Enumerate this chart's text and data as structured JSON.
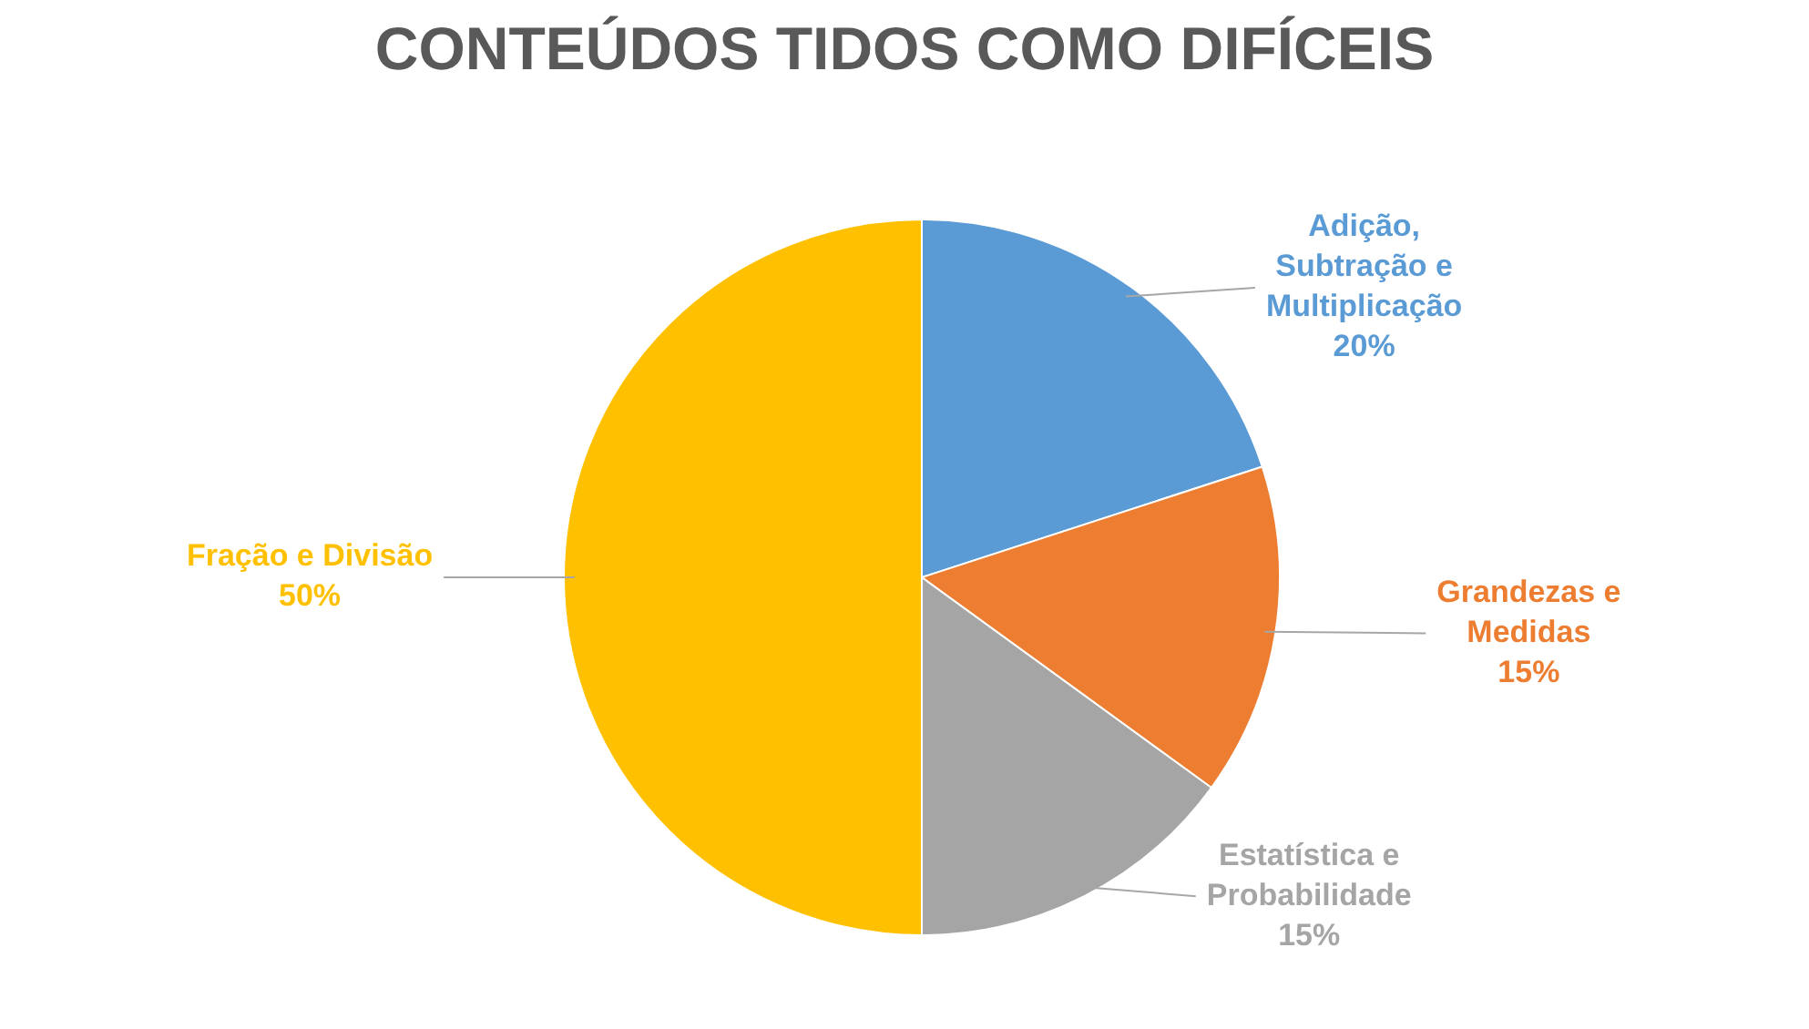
{
  "chart_data": {
    "type": "pie",
    "title": "CONTEÚDOS TIDOS COMO DIFÍCEIS",
    "categories": [
      "Adição, Subtração e Multiplicação",
      "Grandezas e Medidas",
      "Estatística e Probabilidade",
      "Fração e Divisão"
    ],
    "values": [
      20,
      15,
      15,
      50
    ],
    "colors": [
      "#5b9bd5",
      "#ed7d31",
      "#a5a5a5",
      "#ffc000"
    ],
    "value_labels": [
      "20%",
      "15%",
      "15%",
      "50%"
    ],
    "legend": false
  }
}
